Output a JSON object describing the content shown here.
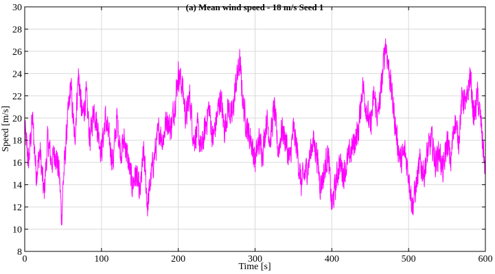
{
  "chart_data": {
    "type": "line",
    "title": "(a) Mean wind speed - 18 m/s  Seed 1",
    "xlabel": "Time [s]",
    "ylabel": "Speed [m/s]",
    "xlim": [
      0,
      600
    ],
    "ylim": [
      8,
      30
    ],
    "xticks": [
      0,
      100,
      200,
      300,
      400,
      500,
      600
    ],
    "yticks": [
      8,
      10,
      12,
      14,
      16,
      18,
      20,
      22,
      24,
      26,
      28,
      30
    ],
    "grid": true,
    "series": [
      {
        "color": "#ff00ff",
        "x": [
          0,
          5,
          10,
          15,
          20,
          25,
          30,
          35,
          40,
          45,
          48,
          50,
          55,
          60,
          65,
          70,
          75,
          80,
          85,
          90,
          95,
          100,
          105,
          110,
          115,
          120,
          125,
          130,
          135,
          140,
          145,
          150,
          155,
          160,
          165,
          170,
          175,
          180,
          185,
          190,
          195,
          200,
          205,
          210,
          215,
          220,
          225,
          230,
          235,
          240,
          245,
          250,
          255,
          260,
          265,
          270,
          275,
          280,
          285,
          290,
          295,
          300,
          305,
          310,
          315,
          320,
          325,
          330,
          335,
          340,
          345,
          350,
          355,
          360,
          365,
          370,
          375,
          380,
          385,
          390,
          395,
          400,
          405,
          410,
          415,
          420,
          425,
          430,
          435,
          440,
          445,
          450,
          455,
          460,
          465,
          470,
          475,
          480,
          485,
          490,
          495,
          500,
          505,
          510,
          515,
          520,
          525,
          530,
          535,
          540,
          545,
          550,
          555,
          560,
          565,
          570,
          575,
          580,
          585,
          590,
          595,
          600
        ],
        "y": [
          19,
          16,
          20,
          15,
          17,
          13,
          18,
          16,
          17,
          15,
          11,
          14,
          19,
          23,
          18,
          24,
          20,
          22,
          18,
          21,
          19,
          17,
          20,
          18,
          16,
          20,
          17,
          18,
          16,
          14,
          15,
          13,
          17,
          12,
          15,
          17,
          19,
          18,
          20,
          19,
          21,
          24,
          23,
          20,
          22,
          18,
          19,
          17,
          19,
          21,
          18,
          20,
          22,
          19,
          21,
          20,
          23,
          25,
          21,
          19,
          18,
          16,
          18,
          17,
          20,
          18,
          21,
          17,
          19,
          18,
          16,
          19,
          17,
          14,
          15,
          16,
          18,
          17,
          14,
          15,
          17,
          12,
          14,
          16,
          15,
          16,
          17,
          18,
          19,
          23,
          21,
          19,
          22,
          20,
          23,
          27,
          24,
          21,
          18,
          16,
          17,
          15,
          12,
          14,
          16,
          15,
          17,
          18,
          16,
          17,
          15,
          18,
          16,
          20,
          18,
          22,
          21,
          24,
          20,
          22,
          19,
          15
        ]
      }
    ]
  }
}
